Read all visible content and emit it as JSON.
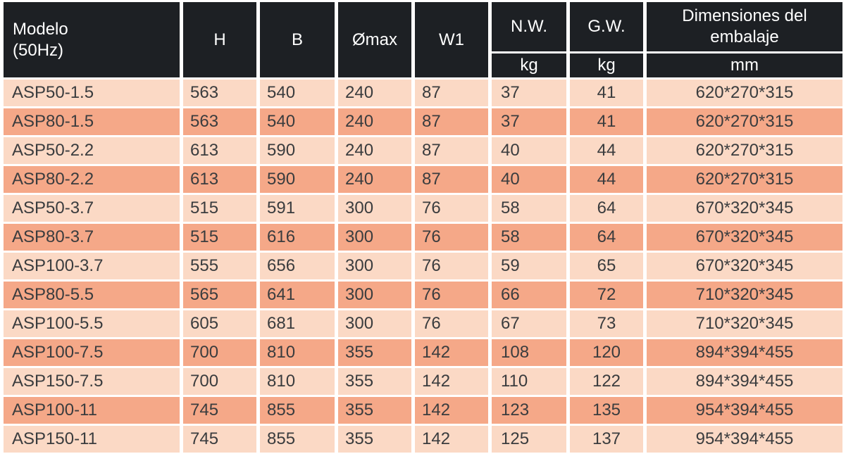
{
  "colors": {
    "header_bg": "#1d2024",
    "header_text": "#ffffff",
    "row_light": "#fbd9c5",
    "row_dark": "#f5a888",
    "text": "#3a3c3e",
    "gap": "#ffffff"
  },
  "table": {
    "header": {
      "model": "Modelo\n(50Hz)",
      "h": "H",
      "b": "B",
      "omax": "Ømax",
      "w1": "W1",
      "nw": "N.W.",
      "gw": "G.W.",
      "dim": "Dimensiones del\nembalaje",
      "nw_unit": "kg",
      "gw_unit": "kg",
      "dim_unit": "mm"
    },
    "rows": [
      {
        "model": "ASP50-1.5",
        "h": "563",
        "b": "540",
        "omax": "240",
        "w1": "87",
        "nw": "37",
        "gw": "41",
        "dim": "620*270*315"
      },
      {
        "model": "ASP80-1.5",
        "h": "563",
        "b": "540",
        "omax": "240",
        "w1": "87",
        "nw": "37",
        "gw": "41",
        "dim": "620*270*315"
      },
      {
        "model": "ASP50-2.2",
        "h": "613",
        "b": "590",
        "omax": "240",
        "w1": "87",
        "nw": "40",
        "gw": "44",
        "dim": "620*270*315"
      },
      {
        "model": "ASP80-2.2",
        "h": "613",
        "b": "590",
        "omax": "240",
        "w1": "87",
        "nw": "40",
        "gw": "44",
        "dim": "620*270*315"
      },
      {
        "model": "ASP50-3.7",
        "h": "515",
        "b": "591",
        "omax": "300",
        "w1": "76",
        "nw": "58",
        "gw": "64",
        "dim": "670*320*345"
      },
      {
        "model": "ASP80-3.7",
        "h": "515",
        "b": "616",
        "omax": "300",
        "w1": "76",
        "nw": "58",
        "gw": "64",
        "dim": "670*320*345"
      },
      {
        "model": "ASP100-3.7",
        "h": "555",
        "b": "656",
        "omax": "300",
        "w1": "76",
        "nw": "59",
        "gw": "65",
        "dim": "670*320*345"
      },
      {
        "model": "ASP80-5.5",
        "h": "565",
        "b": "641",
        "omax": "300",
        "w1": "76",
        "nw": "66",
        "gw": "72",
        "dim": "710*320*345"
      },
      {
        "model": "ASP100-5.5",
        "h": "605",
        "b": "681",
        "omax": "300",
        "w1": "76",
        "nw": "67",
        "gw": "73",
        "dim": "710*320*345"
      },
      {
        "model": "ASP100-7.5",
        "h": "700",
        "b": "810",
        "omax": "355",
        "w1": "142",
        "nw": "108",
        "gw": "120",
        "dim": "894*394*455"
      },
      {
        "model": "ASP150-7.5",
        "h": "700",
        "b": "810",
        "omax": "355",
        "w1": "142",
        "nw": "110",
        "gw": "122",
        "dim": "894*394*455"
      },
      {
        "model": "ASP100-11",
        "h": "745",
        "b": "855",
        "omax": "355",
        "w1": "142",
        "nw": "123",
        "gw": "135",
        "dim": "954*394*455"
      },
      {
        "model": "ASP150-11",
        "h": "745",
        "b": "855",
        "omax": "355",
        "w1": "142",
        "nw": "125",
        "gw": "137",
        "dim": "954*394*455"
      }
    ]
  }
}
